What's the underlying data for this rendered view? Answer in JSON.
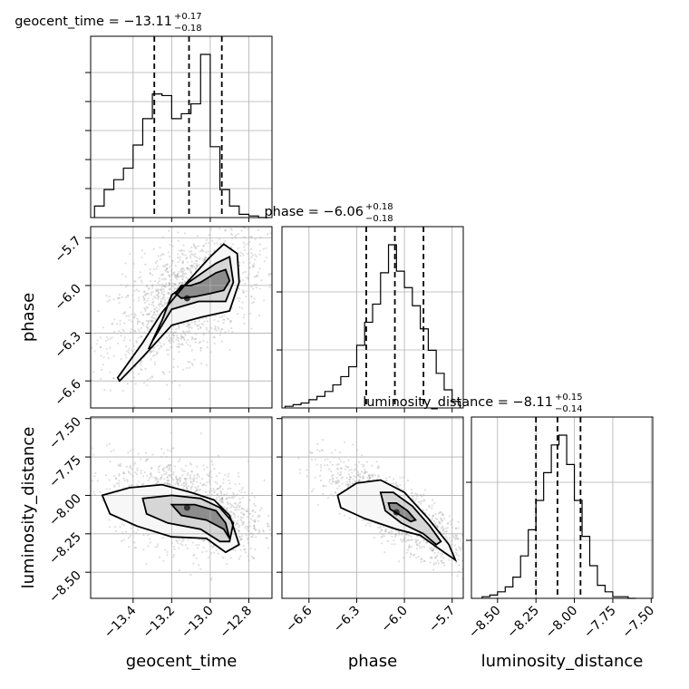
{
  "chart_data": {
    "type": "corner",
    "parameters": [
      "geocent_time",
      "phase",
      "luminosity_distance"
    ],
    "axis_ranges": {
      "geocent_time": [
        -13.62,
        -12.68
      ],
      "phase": [
        -6.77,
        -5.63
      ],
      "luminosity_distance": [
        -8.67,
        -7.49
      ]
    },
    "grid": true,
    "titles": [
      {
        "param": "geocent_time",
        "main": "geocent_time = −13.11",
        "sup": "+0.17",
        "sub": "−0.18"
      },
      {
        "param": "phase",
        "main": "phase = −6.06",
        "sup": "+0.18",
        "sub": "−0.18"
      },
      {
        "param": "luminosity_distance",
        "main": "luminosity_distance = −8.11",
        "sup": "+0.15",
        "sub": "−0.14"
      }
    ],
    "axis_labels": {
      "geocent_time": "geocent_time",
      "phase": "phase",
      "luminosity_distance": "luminosity_distance"
    },
    "ticks": {
      "geocent_time": {
        "values": [
          -13.4,
          -13.2,
          -13.0,
          -12.8
        ],
        "labels": [
          "−13.4",
          "−13.2",
          "−13.0",
          "−12.8"
        ]
      },
      "phase": {
        "values": [
          -6.6,
          -6.3,
          -6.0,
          -5.7
        ],
        "labels": [
          "−6.6",
          "−6.3",
          "−6.0",
          "−5.7"
        ]
      },
      "luminosity_distance": {
        "values": [
          -8.5,
          -8.25,
          -8.0,
          -7.75,
          -7.5
        ],
        "labels": [
          "−8.50",
          "−8.25",
          "−8.00",
          "−7.75",
          "−7.50"
        ]
      }
    },
    "diag_hist_yticks": {
      "geocent_time": 6,
      "phase": 3,
      "luminosity_distance": 3
    },
    "quantiles": {
      "geocent_time": [
        -13.29,
        -13.11,
        -12.94
      ],
      "phase": [
        -6.24,
        -6.06,
        -5.88
      ],
      "luminosity_distance": [
        -8.25,
        -8.11,
        -7.96
      ]
    },
    "histograms": {
      "geocent_time": {
        "edges": [
          -13.6,
          -13.55,
          -13.5,
          -13.45,
          -13.4,
          -13.35,
          -13.3,
          -13.25,
          -13.2,
          -13.15,
          -13.1,
          -13.05,
          -13.0,
          -12.95,
          -12.9,
          -12.85,
          -12.8,
          -12.75,
          -12.7
        ],
        "counts": [
          0.07,
          0.17,
          0.23,
          0.3,
          0.44,
          0.6,
          0.75,
          0.74,
          0.6,
          0.63,
          0.69,
          0.99,
          0.43,
          0.17,
          0.07,
          0.02,
          0.01,
          0.0
        ]
      },
      "phase": {
        "edges": [
          -6.75,
          -6.7,
          -6.65,
          -6.6,
          -6.55,
          -6.5,
          -6.45,
          -6.4,
          -6.35,
          -6.3,
          -6.25,
          -6.2,
          -6.15,
          -6.1,
          -6.05,
          -6.0,
          -5.95,
          -5.9,
          -5.85,
          -5.8,
          -5.75,
          -5.7,
          -5.65
        ],
        "counts": [
          0.01,
          0.02,
          0.03,
          0.05,
          0.07,
          0.1,
          0.14,
          0.19,
          0.25,
          0.38,
          0.52,
          0.63,
          0.82,
          0.99,
          0.83,
          0.73,
          0.62,
          0.48,
          0.35,
          0.21,
          0.11,
          0.04
        ]
      },
      "luminosity_distance": {
        "edges": [
          -8.6,
          -8.55,
          -8.5,
          -8.45,
          -8.4,
          -8.35,
          -8.3,
          -8.25,
          -8.2,
          -8.15,
          -8.1,
          -8.05,
          -8.0,
          -7.95,
          -7.9,
          -7.85,
          -7.8,
          -7.75,
          -7.7,
          -7.65,
          -7.6
        ],
        "counts": [
          0.01,
          0.02,
          0.04,
          0.07,
          0.13,
          0.26,
          0.42,
          0.6,
          0.77,
          0.94,
          1.0,
          0.82,
          0.6,
          0.38,
          0.2,
          0.08,
          0.04,
          0.01,
          0.01,
          0.0
        ]
      }
    },
    "joint": [
      {
        "x": "geocent_time",
        "y": "phase",
        "samples": {
          "center": [
            -13.12,
            -6.08
          ],
          "spread": [
            0.2,
            0.22
          ],
          "correlation": 0.55
        },
        "contours": [
          [
            [
              -13.48,
              -6.58
            ],
            [
              -13.35,
              -6.36
            ],
            [
              -13.25,
              -6.17
            ],
            [
              -13.12,
              -5.98
            ],
            [
              -13.0,
              -5.82
            ],
            [
              -12.93,
              -5.74
            ],
            [
              -12.86,
              -5.8
            ],
            [
              -12.85,
              -5.98
            ],
            [
              -12.9,
              -6.16
            ],
            [
              -13.05,
              -6.2
            ],
            [
              -13.2,
              -6.25
            ],
            [
              -13.35,
              -6.45
            ],
            [
              -13.47,
              -6.6
            ]
          ],
          [
            [
              -13.32,
              -6.4
            ],
            [
              -13.25,
              -6.22
            ],
            [
              -13.2,
              -6.06
            ],
            [
              -13.1,
              -5.97
            ],
            [
              -12.97,
              -5.86
            ],
            [
              -12.9,
              -5.82
            ],
            [
              -12.88,
              -5.98
            ],
            [
              -12.92,
              -6.1
            ],
            [
              -13.06,
              -6.1
            ],
            [
              -13.2,
              -6.15
            ],
            [
              -13.3,
              -6.35
            ]
          ],
          [
            [
              -13.18,
              -6.05
            ],
            [
              -13.15,
              -6.0
            ],
            [
              -13.1,
              -6.0
            ],
            [
              -13.05,
              -5.98
            ],
            [
              -12.97,
              -5.92
            ],
            [
              -12.92,
              -5.9
            ],
            [
              -12.9,
              -5.97
            ],
            [
              -12.93,
              -6.03
            ],
            [
              -13.0,
              -6.05
            ],
            [
              -13.08,
              -6.07
            ],
            [
              -13.15,
              -6.08
            ]
          ]
        ]
      },
      {
        "x": "geocent_time",
        "y": "luminosity_distance",
        "samples": {
          "center": [
            -13.12,
            -8.08
          ],
          "spread": [
            0.2,
            0.15
          ],
          "correlation": -0.35
        },
        "contours": [
          [
            [
              -13.56,
              -8.0
            ],
            [
              -13.42,
              -7.95
            ],
            [
              -13.25,
              -7.93
            ],
            [
              -13.1,
              -7.98
            ],
            [
              -12.98,
              -8.03
            ],
            [
              -12.9,
              -8.13
            ],
            [
              -12.85,
              -8.32
            ],
            [
              -12.92,
              -8.37
            ],
            [
              -13.02,
              -8.28
            ],
            [
              -13.2,
              -8.27
            ],
            [
              -13.38,
              -8.2
            ],
            [
              -13.52,
              -8.12
            ]
          ],
          [
            [
              -13.35,
              -8.02
            ],
            [
              -13.2,
              -8.0
            ],
            [
              -13.05,
              -8.02
            ],
            [
              -12.95,
              -8.08
            ],
            [
              -12.88,
              -8.18
            ],
            [
              -12.9,
              -8.3
            ],
            [
              -12.95,
              -8.3
            ],
            [
              -13.05,
              -8.22
            ],
            [
              -13.22,
              -8.18
            ],
            [
              -13.33,
              -8.12
            ]
          ],
          [
            [
              -13.2,
              -8.06
            ],
            [
              -13.08,
              -8.06
            ],
            [
              -12.97,
              -8.1
            ],
            [
              -12.92,
              -8.18
            ],
            [
              -12.9,
              -8.28
            ],
            [
              -12.93,
              -8.22
            ],
            [
              -13.02,
              -8.16
            ],
            [
              -13.15,
              -8.13
            ]
          ]
        ]
      },
      {
        "x": "phase",
        "y": "luminosity_distance",
        "samples": {
          "center": [
            -6.05,
            -8.11
          ],
          "spread": [
            0.22,
            0.16
          ],
          "correlation": -0.82
        },
        "contours": [
          [
            [
              -6.42,
              -8.0
            ],
            [
              -6.3,
              -7.92
            ],
            [
              -6.15,
              -7.9
            ],
            [
              -6.0,
              -7.98
            ],
            [
              -5.85,
              -8.15
            ],
            [
              -5.72,
              -8.32
            ],
            [
              -5.68,
              -8.42
            ],
            [
              -5.75,
              -8.37
            ],
            [
              -5.9,
              -8.26
            ],
            [
              -6.05,
              -8.22
            ],
            [
              -6.25,
              -8.15
            ],
            [
              -6.4,
              -8.08
            ]
          ],
          [
            [
              -6.15,
              -7.98
            ],
            [
              -6.07,
              -7.98
            ],
            [
              -5.95,
              -8.07
            ],
            [
              -5.84,
              -8.2
            ],
            [
              -5.77,
              -8.3
            ],
            [
              -5.8,
              -8.32
            ],
            [
              -5.88,
              -8.25
            ],
            [
              -6.02,
              -8.18
            ],
            [
              -6.12,
              -8.1
            ]
          ],
          [
            [
              -6.1,
              -8.05
            ],
            [
              -6.05,
              -8.05
            ],
            [
              -5.98,
              -8.1
            ],
            [
              -5.93,
              -8.16
            ],
            [
              -5.96,
              -8.17
            ],
            [
              -6.04,
              -8.12
            ],
            [
              -6.09,
              -8.09
            ]
          ]
        ]
      }
    ]
  }
}
